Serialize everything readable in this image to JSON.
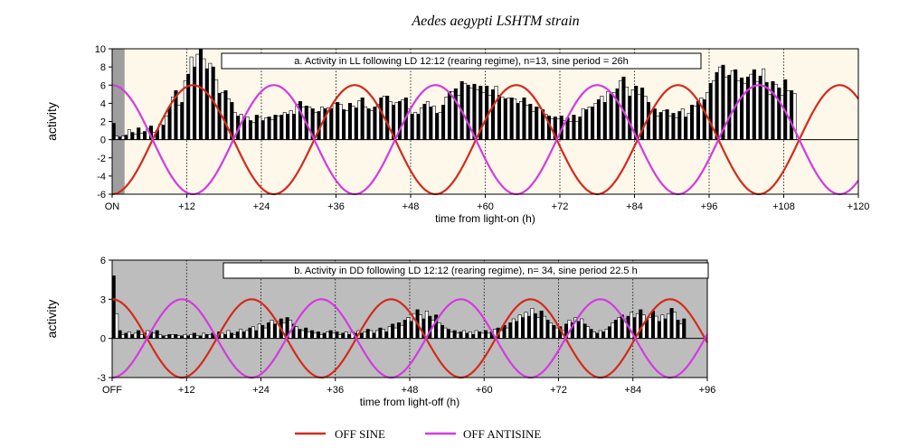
{
  "figure_title": "Aedes aegypti LSHTM strain",
  "legend": [
    {
      "label": "OFF SINE",
      "color": "#d42a1c"
    },
    {
      "label": "OFF ANTISINE",
      "color": "#d43ae0"
    }
  ],
  "colors": {
    "panel_a_bg": "#fdf8ea",
    "panel_b_bg": "#bdbdbd",
    "sine": "#d42a1c",
    "antisine": "#d43ae0"
  },
  "chart_data": [
    {
      "type": "bar",
      "annotation": "a.  Activity in LL following LD 12:12 (rearing regime), n=13, sine period = 26h",
      "xlabel": "time from light-on (h)",
      "ylabel": "activity",
      "xlim": [
        0,
        120
      ],
      "ylim": [
        -6,
        10
      ],
      "xtick_values": [
        0,
        12,
        24,
        36,
        48,
        60,
        72,
        84,
        96,
        108,
        120
      ],
      "xtick_labels": [
        "ON",
        "+12",
        "+24",
        "+36",
        "+48",
        "+60",
        "+72",
        "+84",
        "+96",
        "+108",
        "+120"
      ],
      "ytick_values": [
        -6,
        -4,
        -2,
        0,
        2,
        4,
        6,
        8,
        10
      ],
      "ytick_labels": [
        "-6",
        "-4",
        "-2",
        "0",
        "2",
        "4",
        "6",
        "8",
        "10"
      ],
      "shaded_region": [
        0,
        2
      ],
      "bin_width_h": 0.5,
      "activity": [
        1.8,
        0.4,
        0.3,
        0.4,
        0.5,
        1.1,
        0.8,
        0.6,
        1.3,
        0.7,
        0.9,
        1.2,
        1.5,
        0.8,
        1.0,
        1.7,
        1.6,
        2.6,
        3.6,
        4.7,
        5.4,
        3.8,
        4.1,
        6.5,
        7.2,
        9.1,
        8.0,
        9.4,
        10.0,
        8.9,
        7.8,
        8.4,
        8.0,
        6.6,
        5.1,
        5.2,
        5.4,
        4.5,
        4.1,
        3.0,
        2.6,
        2.8,
        2.4,
        2.5,
        2.1,
        1.9,
        2.7,
        2.5,
        2.1,
        2.4,
        2.5,
        2.2,
        2.7,
        2.6,
        2.7,
        3.0,
        2.8,
        3.2,
        2.8,
        3.9,
        4.2,
        3.6,
        3.7,
        3.6,
        3.4,
        3.0,
        3.1,
        3.6,
        3.4,
        3.5,
        3.4,
        4.0,
        4.1,
        3.9,
        3.3,
        3.2,
        4.0,
        3.7,
        3.5,
        4.3,
        4.6,
        3.6,
        3.4,
        3.2,
        3.6,
        3.9,
        4.6,
        4.8,
        4.8,
        4.2,
        3.8,
        4.1,
        4.2,
        4.4,
        4.6,
        3.4,
        2.8,
        3.0,
        2.8,
        3.5,
        3.9,
        4.2,
        3.6,
        3.7,
        2.9,
        3.0,
        3.8,
        4.7,
        5.3,
        5.3,
        5.6,
        4.9,
        6.4,
        6.2,
        6.0,
        5.7,
        6.1,
        5.5,
        5.9,
        5.2,
        5.9,
        4.9,
        5.5,
        5.9,
        4.9,
        4.7,
        4.5,
        4.6,
        4.6,
        4.5,
        4.0,
        4.2,
        4.6,
        3.8,
        3.9,
        3.1,
        3.6,
        3.5,
        3.3,
        2.8,
        2.6,
        2.3,
        2.5,
        2.3,
        2.6,
        2.1,
        2.4,
        2.0,
        2.7,
        2.0,
        2.5,
        3.4,
        3.3,
        3.6,
        3.6,
        4.0,
        4.4,
        4.8,
        4.1,
        5.3,
        5.0,
        5.2,
        5.6,
        6.5,
        6.9,
        5.8,
        4.8,
        5.5,
        5.9,
        5.0,
        5.7,
        4.8,
        4.1,
        3.1,
        3.4,
        2.6,
        3.0,
        3.2,
        3.3,
        2.6,
        2.9,
        2.4,
        3.1,
        3.4,
        2.5,
        2.9,
        3.8,
        3.7,
        4.2,
        4.6,
        4.4,
        5.2,
        6.2,
        6.5,
        7.4,
        8.0,
        8.2,
        6.9,
        7.1,
        7.6,
        7.7,
        6.5,
        6.8,
        6.2,
        6.9,
        7.2,
        7.7,
        6.4,
        7.0,
        7.8,
        6.3,
        5.0,
        6.4,
        6.1,
        5.7,
        4.9,
        6.6,
        5.4,
        5.4,
        5.1
      ],
      "series": [
        {
          "name": "OFF SINE",
          "period_h": 26,
          "amplitude": 6,
          "start_value": -6
        },
        {
          "name": "OFF ANTISINE",
          "period_h": 26,
          "amplitude": 6,
          "start_value": 6
        }
      ]
    },
    {
      "type": "bar",
      "annotation": "b.  Activity in DD following LD 12:12 (rearing regime), n= 34, sine period 22.5 h",
      "xlabel": "time from light-off (h)",
      "ylabel": "activity",
      "xlim": [
        0,
        96
      ],
      "ylim": [
        -3,
        6
      ],
      "xtick_values": [
        0,
        12,
        24,
        36,
        48,
        60,
        72,
        84,
        96
      ],
      "xtick_labels": [
        "OFF",
        "+12",
        "+24",
        "+36",
        "+48",
        "+60",
        "+72",
        "+84",
        "+96"
      ],
      "ytick_values": [
        -3,
        0,
        3,
        6
      ],
      "ytick_labels": [
        "-3",
        "0",
        "3",
        "6"
      ],
      "bin_width_h": 0.5,
      "activity": [
        4.8,
        1.9,
        0.6,
        0.3,
        0.4,
        0.5,
        0.3,
        0.4,
        0.6,
        0.3,
        0.4,
        0.6,
        0.5,
        0.4,
        0.6,
        0.3,
        0.2,
        0.2,
        0.3,
        0.3,
        0.3,
        0.2,
        0.2,
        0.3,
        0.2,
        0.3,
        0.4,
        0.2,
        0.2,
        0.4,
        0.3,
        0.3,
        0.4,
        0.2,
        0.5,
        0.4,
        0.3,
        0.6,
        0.4,
        0.3,
        0.5,
        0.7,
        0.5,
        0.6,
        0.8,
        0.9,
        0.6,
        1.1,
        1.0,
        0.8,
        1.2,
        1.4,
        1.1,
        1.3,
        1.5,
        1.2,
        1.6,
        1.4,
        1.1,
        0.9,
        0.7,
        0.6,
        0.8,
        0.5,
        0.6,
        0.4,
        0.5,
        0.3,
        0.4,
        0.5,
        0.6,
        0.4,
        0.5,
        0.3,
        0.4,
        0.5,
        0.3,
        0.5,
        0.4,
        0.6,
        0.4,
        0.5,
        0.7,
        0.6,
        0.4,
        0.6,
        0.8,
        0.7,
        0.5,
        0.9,
        1.1,
        0.8,
        1.2,
        1.0,
        1.4,
        1.6,
        1.3,
        1.9,
        2.2,
        1.8,
        1.5,
        2.1,
        1.7,
        1.4,
        1.8,
        1.2,
        1.0,
        0.8,
        0.7,
        0.5,
        0.6,
        0.4,
        0.5,
        0.6,
        0.4,
        0.5,
        0.3,
        0.6,
        0.5,
        0.4,
        0.6,
        0.4,
        0.5,
        0.7,
        0.8,
        0.6,
        1.0,
        0.8,
        1.2,
        1.5,
        1.3,
        1.8,
        1.6,
        2.0,
        1.7,
        2.3,
        1.9,
        1.6,
        2.1,
        1.7,
        1.4,
        1.2,
        1.0,
        0.8,
        0.9,
        0.6,
        1.1,
        1.4,
        1.2,
        1.6,
        1.3,
        1.5,
        1.1,
        0.9,
        0.7,
        0.5,
        0.4,
        0.6,
        0.5,
        0.7,
        0.9,
        1.2,
        1.4,
        1.6,
        1.8,
        1.5,
        1.7,
        2.0,
        1.6,
        1.9,
        2.2,
        1.8,
        1.4,
        1.6,
        2.1,
        1.7,
        1.3,
        1.8,
        1.5,
        1.9,
        2.3,
        2.0,
        1.4,
        1.1,
        1.5
      ],
      "series": [
        {
          "name": "OFF SINE",
          "period_h": 22.5,
          "amplitude": 3,
          "start_value": 3
        },
        {
          "name": "OFF ANTISINE",
          "period_h": 22.5,
          "amplitude": 3,
          "start_value": -3
        }
      ]
    }
  ]
}
